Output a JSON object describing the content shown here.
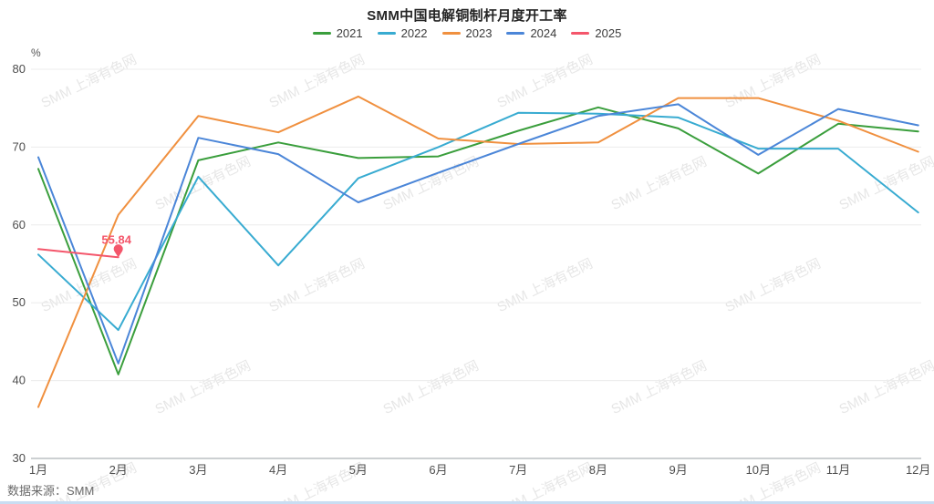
{
  "title": "SMM中国电解铜制杆月度开工率",
  "source": "数据来源：SMM",
  "watermark": "SMM 上海有色网",
  "chart_data": {
    "type": "line",
    "title": "SMM中国电解铜制杆月度开工率",
    "ylabel": "%",
    "xlabel": "",
    "ylim": [
      30,
      80
    ],
    "ytick_step": 10,
    "grid": true,
    "legend_position": "top",
    "categories": [
      "1月",
      "2月",
      "3月",
      "4月",
      "5月",
      "6月",
      "7月",
      "8月",
      "9月",
      "10月",
      "11月",
      "12月"
    ],
    "series": [
      {
        "name": "2021",
        "color": "#3a9e3c",
        "values": [
          67.2,
          40.8,
          68.3,
          70.6,
          68.6,
          68.8,
          72.1,
          75.1,
          72.4,
          66.6,
          73.0,
          72.0
        ]
      },
      {
        "name": "2022",
        "color": "#38abd1",
        "values": [
          56.2,
          46.5,
          66.2,
          54.8,
          66.0,
          70.0,
          74.4,
          74.3,
          73.8,
          69.8,
          69.8,
          61.6
        ]
      },
      {
        "name": "2023",
        "color": "#f0903f",
        "values": [
          36.6,
          61.3,
          74.0,
          71.9,
          76.5,
          71.1,
          70.4,
          70.6,
          76.3,
          76.3,
          73.4,
          69.4
        ]
      },
      {
        "name": "2024",
        "color": "#4b86d8",
        "values": [
          68.7,
          42.2,
          71.2,
          69.1,
          62.9,
          66.7,
          70.4,
          74.0,
          75.5,
          69.0,
          74.9,
          72.8
        ]
      },
      {
        "name": "2025",
        "color": "#f4566b",
        "values": [
          56.9,
          55.84,
          null,
          null,
          null,
          null,
          null,
          null,
          null,
          null,
          null,
          null
        ]
      }
    ],
    "annotation": {
      "series": "2025",
      "category": "2月",
      "text": "55.84"
    }
  },
  "axis": {
    "yticks": [
      "30",
      "40",
      "50",
      "60",
      "70",
      "80"
    ],
    "unit": "%"
  }
}
